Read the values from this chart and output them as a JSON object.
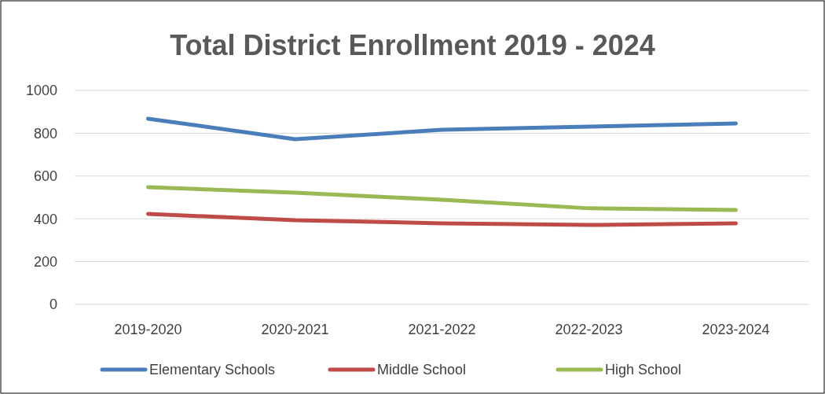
{
  "chart_data": {
    "type": "line",
    "title": "Total District Enrollment 2019 - 2024",
    "categories": [
      "2019-2020",
      "2020-2021",
      "2021-2022",
      "2022-2023",
      "2023-2024"
    ],
    "series": [
      {
        "name": "Elementary Schools",
        "color": "#4a7ebb",
        "values": [
          868,
          772,
          816,
          831,
          846
        ]
      },
      {
        "name": "Middle School",
        "color": "#be4b48",
        "values": [
          423,
          393,
          379,
          371,
          379
        ]
      },
      {
        "name": "High School",
        "color": "#98b954",
        "values": [
          548,
          522,
          489,
          449,
          441
        ]
      }
    ],
    "ylim": [
      0,
      1000
    ],
    "yticks": [
      0,
      200,
      400,
      600,
      800,
      1000
    ],
    "grid": "y",
    "legend": "bottom",
    "marker": "none",
    "line_style": "solid"
  }
}
